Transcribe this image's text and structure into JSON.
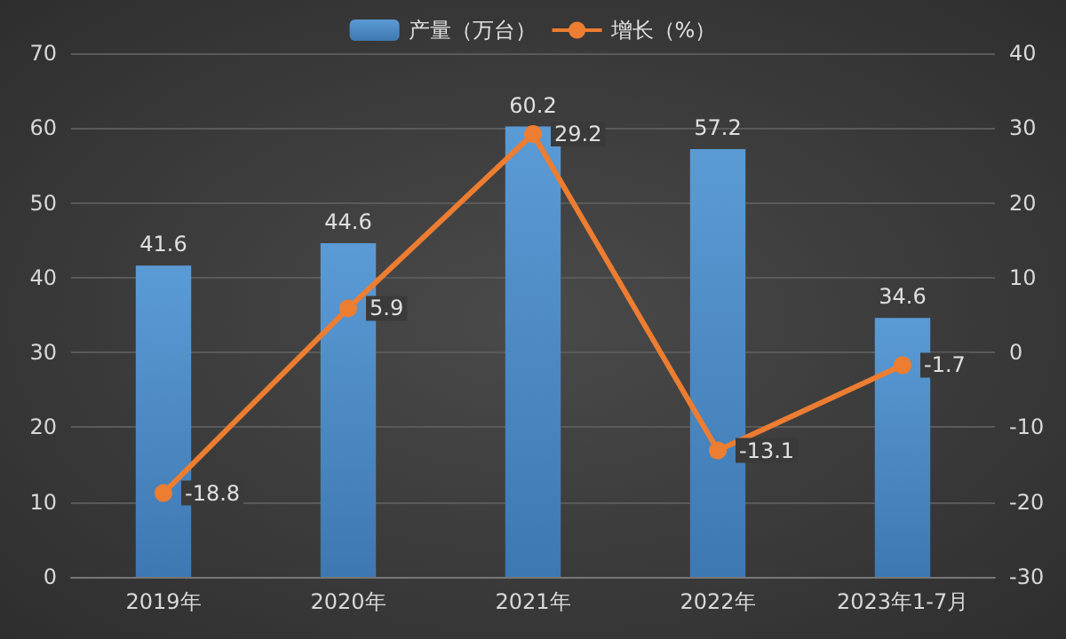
{
  "chart_data": {
    "type": "bar",
    "categories": [
      "2019年",
      "2020年",
      "2021年",
      "2022年",
      "2023年1-7月"
    ],
    "series": [
      {
        "name": "产量（万台）",
        "type": "bar",
        "color": "#5b9bd5",
        "values": [
          41.6,
          44.6,
          60.2,
          57.2,
          34.6
        ]
      },
      {
        "name": "增长（%）",
        "type": "line",
        "axis": "y2",
        "color": "#ed7d31",
        "values": [
          -18.8,
          5.9,
          29.2,
          -13.1,
          -1.7
        ]
      }
    ],
    "ylim": [
      0,
      70
    ],
    "yticks": [
      0,
      10,
      20,
      30,
      40,
      50,
      60,
      70
    ],
    "y2lim": [
      -30,
      40
    ],
    "y2ticks": [
      -30,
      -20,
      -10,
      0,
      10,
      20,
      30,
      40
    ],
    "grid": "y",
    "legend": "top",
    "marker": "circle",
    "line_style": "solid",
    "data_labels": true
  }
}
